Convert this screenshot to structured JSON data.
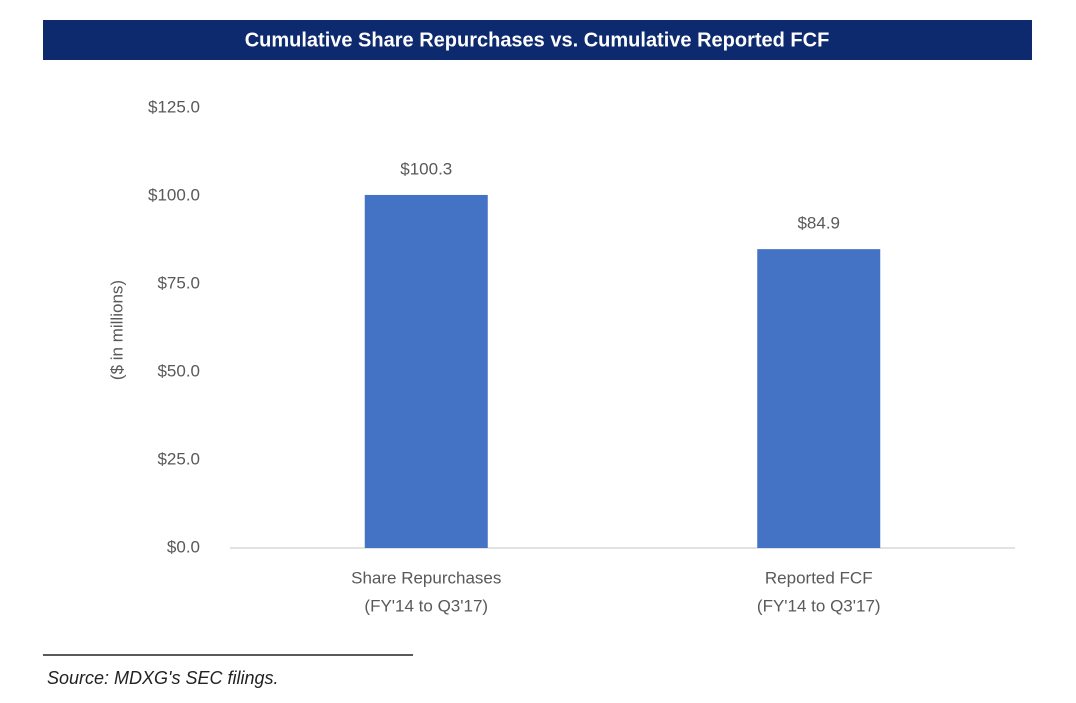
{
  "chart_data": {
    "type": "bar",
    "title": "Cumulative Share Repurchases vs. Cumulative Reported FCF",
    "y_label": "($ in millions)",
    "categories": [
      [
        "Share Repurchases",
        "(FY'14 to Q3'17)"
      ],
      [
        "Reported FCF",
        "(FY'14 to Q3'17)"
      ]
    ],
    "values": [
      100.3,
      84.9
    ],
    "value_labels": [
      "$100.3",
      "$84.9"
    ],
    "color": "#4472c4",
    "ylim": [
      0,
      125
    ],
    "yticks": [
      {
        "value": 0,
        "label": "$0.0"
      },
      {
        "value": 25,
        "label": "$25.0"
      },
      {
        "value": 50,
        "label": "$50.0"
      },
      {
        "value": 75,
        "label": "$75.0"
      },
      {
        "value": 100,
        "label": "$100.0"
      },
      {
        "value": 125,
        "label": "$125.0"
      }
    ],
    "grid": false,
    "source": "Source: MDXG's SEC filings."
  }
}
